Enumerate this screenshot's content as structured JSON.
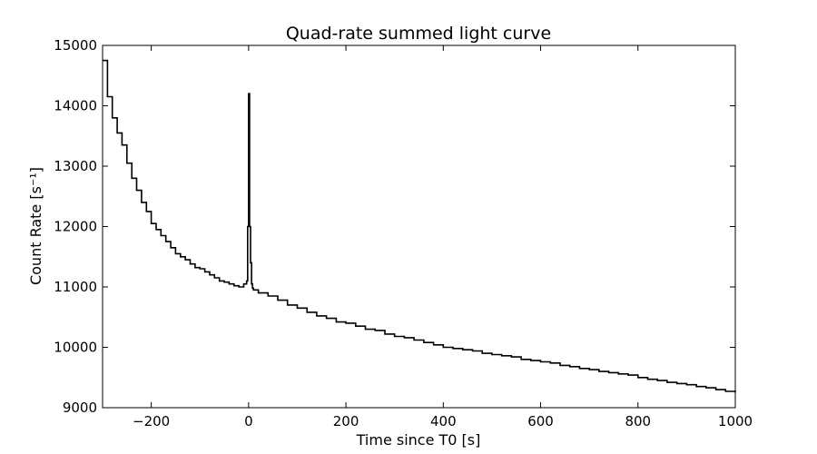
{
  "chart_data": {
    "type": "line",
    "title": "Quad-rate summed light curve",
    "xlabel": "Time since T0 [s]",
    "ylabel": "Count Rate [s⁻¹]",
    "xlim": [
      -300,
      1000
    ],
    "ylim": [
      9000,
      15000
    ],
    "xticks": [
      -200,
      0,
      200,
      400,
      600,
      800,
      1000
    ],
    "xtick_labels": [
      "−200",
      "0",
      "200",
      "400",
      "600",
      "800",
      "1000"
    ],
    "yticks": [
      9000,
      10000,
      11000,
      12000,
      13000,
      14000,
      15000
    ],
    "ytick_labels": [
      "9000",
      "10000",
      "11000",
      "12000",
      "13000",
      "14000",
      "15000"
    ],
    "grid": false,
    "legend": "none",
    "line_color": "#000000",
    "series": [
      {
        "x": [
          -300,
          -290,
          -280,
          -270,
          -260,
          -250,
          -240,
          -230,
          -220,
          -210,
          -200,
          -190,
          -180,
          -170,
          -160,
          -150,
          -140,
          -130,
          -120,
          -110,
          -100,
          -90,
          -80,
          -70,
          -60,
          -50,
          -40,
          -30,
          -20,
          -10,
          -4,
          -2,
          0,
          2,
          4,
          6,
          8,
          10,
          20,
          40,
          60,
          80,
          100,
          120,
          140,
          160,
          180,
          200,
          220,
          240,
          260,
          280,
          300,
          320,
          340,
          360,
          380,
          400,
          420,
          440,
          460,
          480,
          500,
          520,
          540,
          560,
          580,
          600,
          620,
          640,
          660,
          680,
          700,
          720,
          740,
          760,
          780,
          800,
          820,
          840,
          860,
          880,
          900,
          920,
          940,
          960,
          980,
          1000
        ],
        "values": [
          14750,
          14150,
          13800,
          13550,
          13350,
          13050,
          12800,
          12600,
          12400,
          12250,
          12050,
          11950,
          11850,
          11750,
          11650,
          11550,
          11500,
          11450,
          11380,
          11320,
          11300,
          11250,
          11200,
          11150,
          11100,
          11080,
          11050,
          11020,
          11000,
          11050,
          11100,
          12000,
          14200,
          12000,
          11400,
          11050,
          10980,
          10950,
          10900,
          10850,
          10780,
          10700,
          10650,
          10580,
          10520,
          10480,
          10420,
          10400,
          10350,
          10300,
          10280,
          10220,
          10180,
          10160,
          10120,
          10080,
          10040,
          10000,
          9980,
          9960,
          9940,
          9900,
          9880,
          9860,
          9840,
          9800,
          9780,
          9760,
          9740,
          9700,
          9680,
          9650,
          9630,
          9600,
          9580,
          9560,
          9540,
          9500,
          9470,
          9450,
          9420,
          9400,
          9380,
          9350,
          9330,
          9300,
          9270,
          9250
        ]
      }
    ]
  }
}
